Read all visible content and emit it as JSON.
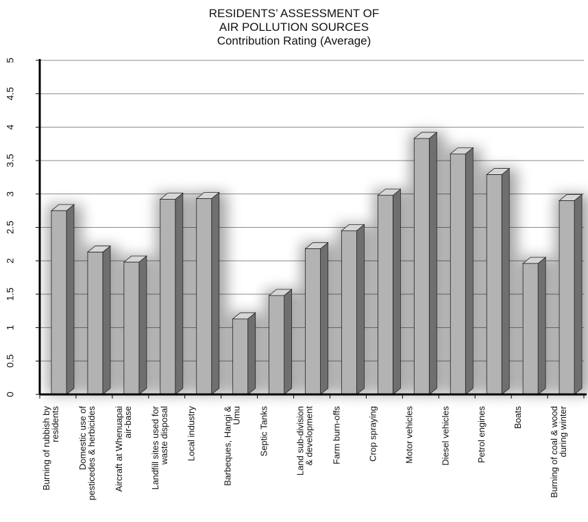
{
  "chart_data": {
    "type": "bar",
    "title": "RESIDENTS’ ASSESSMENT OF AIR POLLUTION SOURCES",
    "title_lines": [
      "RESIDENTS’ ASSESSMENT OF",
      "AIR POLLUTION SOURCES"
    ],
    "subtitle": "Contribution Rating (Average)",
    "categories": [
      "Burning of rubbish  by residents",
      "Domestic use of pesticedes & herbicides",
      "Aircraft at Whenuapai air-base",
      "Landfill sites used for waste disposal",
      "Local industry",
      "Barbeques, Hangi & Umu",
      "Septic Tanks",
      "Land sub-division & development",
      "Farm burn-offs",
      "Crop spraying",
      "Motor vehicles",
      "Diesel vehicles",
      "Petrol engines",
      "Boats",
      "Burning of coal & wood during winter"
    ],
    "category_lines": [
      [
        "Burning of rubbish  by",
        "residents"
      ],
      [
        "Domestic use of",
        "pesticedes & herbicides"
      ],
      [
        "Aircraft at Whenuapai",
        "air-base"
      ],
      [
        "Landfill sites used for",
        "waste disposal"
      ],
      [
        "Local industry"
      ],
      [
        "Barbeques, Hangi &",
        "Umu"
      ],
      [
        "Septic Tanks"
      ],
      [
        "Land sub-division",
        "& development"
      ],
      [
        "Farm burn-offs"
      ],
      [
        "Crop spraying"
      ],
      [
        "Motor vehicles"
      ],
      [
        "Diesel vehicles"
      ],
      [
        "Petrol engines"
      ],
      [
        "Boats"
      ],
      [
        "Burning of coal & wood",
        "during winter"
      ]
    ],
    "values": [
      2.75,
      2.13,
      1.98,
      2.92,
      2.93,
      1.13,
      1.48,
      2.18,
      2.45,
      2.98,
      3.83,
      3.6,
      3.29,
      1.96,
      2.9
    ],
    "ylim": [
      0,
      5
    ],
    "yticks": [
      "0",
      "0.5",
      "1",
      "1.5",
      "2",
      "2.5",
      "3",
      "3.5",
      "4",
      "4.5",
      "5"
    ],
    "grid": true,
    "legend": "none",
    "bar_style": "3d",
    "colors": {
      "front": "#b3b3b3",
      "side": "#6f6f6f",
      "top": "#d6d6d6",
      "grid": "#8a8a8a",
      "axis": "#000000"
    }
  }
}
